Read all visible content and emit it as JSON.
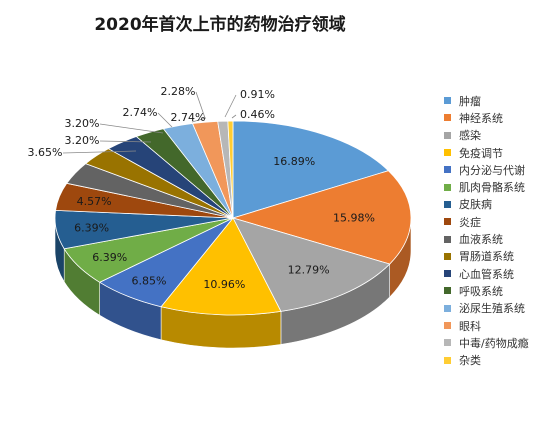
{
  "chart_data": {
    "type": "pie",
    "title": "2020年首次上市的药物治疗领域",
    "legend_position": "right",
    "series": [
      {
        "name": "肿瘤",
        "value": 16.89,
        "label": "16.89%",
        "color": "#5B9BD5"
      },
      {
        "name": "神经系统",
        "value": 15.98,
        "label": "15.98%",
        "color": "#ED7D31"
      },
      {
        "name": "感染",
        "value": 12.79,
        "label": "12.79%",
        "color": "#A5A5A5"
      },
      {
        "name": "免疫调节",
        "value": 10.96,
        "label": "10.96%",
        "color": "#FFC000"
      },
      {
        "name": "内分泌与代谢",
        "value": 6.85,
        "label": "6.85%",
        "color": "#4472C4"
      },
      {
        "name": "肌肉骨骼系统",
        "value": 6.39,
        "label": "6.39%",
        "color": "#70AD47"
      },
      {
        "name": "皮肤病",
        "value": 6.39,
        "label": "6.39%",
        "color": "#255E91"
      },
      {
        "name": "炎症",
        "value": 4.57,
        "label": "4.57%",
        "color": "#9E480E"
      },
      {
        "name": "血液系统",
        "value": 3.65,
        "label": "3.65%",
        "color": "#636363"
      },
      {
        "name": "胃肠道系统",
        "value": 3.2,
        "label": "3.20%",
        "color": "#997300"
      },
      {
        "name": "心血管系统",
        "value": 3.2,
        "label": "3.20%",
        "color": "#264478"
      },
      {
        "name": "呼吸系统",
        "value": 2.74,
        "label": "2.74%",
        "color": "#43682B"
      },
      {
        "name": "泌尿生殖系统",
        "value": 2.74,
        "label": "2.74%",
        "color": "#7CAFDD"
      },
      {
        "name": "眼科",
        "value": 2.28,
        "label": "2.28%",
        "color": "#F1975A"
      },
      {
        "name": "中毒/药物成瘾",
        "value": 0.91,
        "label": "0.91%",
        "color": "#B7B7B7"
      },
      {
        "name": "杂类",
        "value": 0.46,
        "label": "0.46%",
        "color": "#FFCD33"
      }
    ]
  }
}
